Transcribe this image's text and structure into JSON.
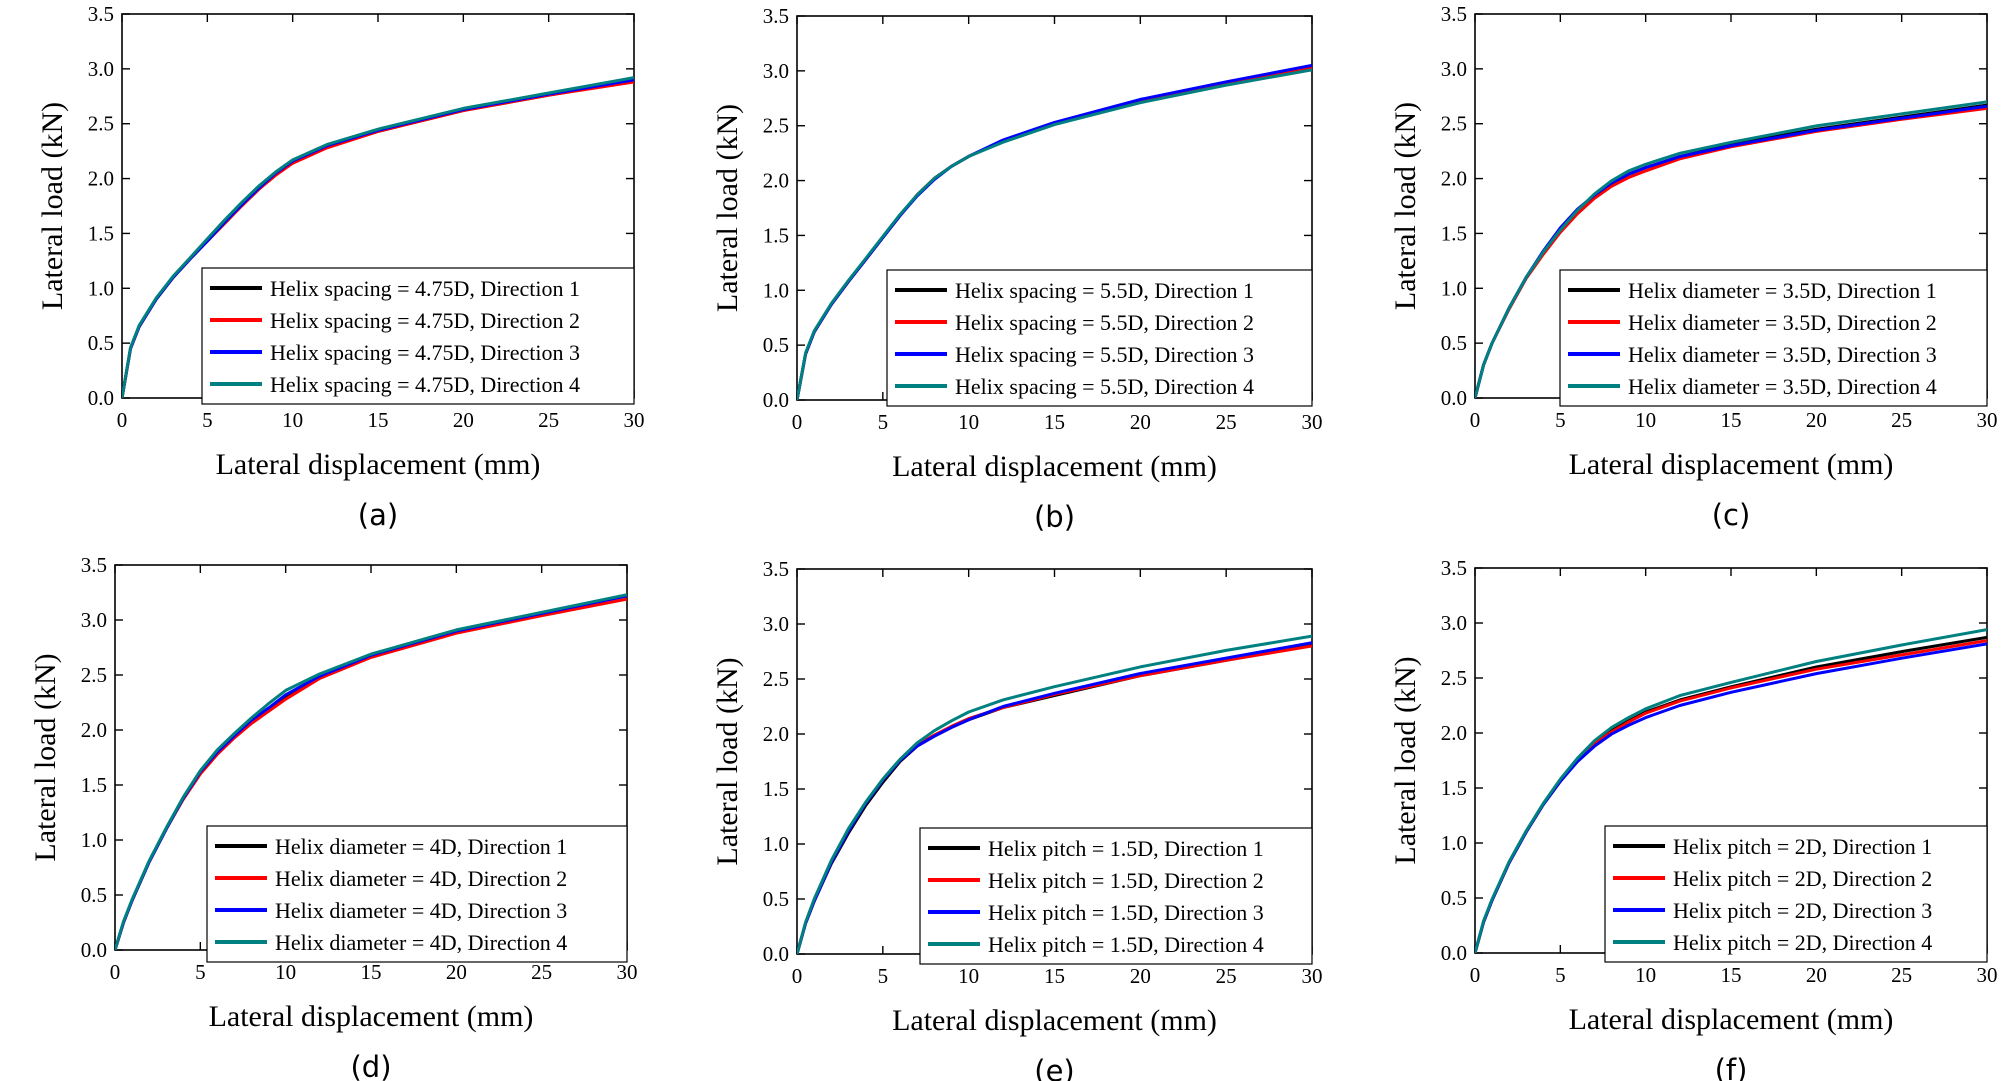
{
  "series_colors": [
    "#000000",
    "#ff0000",
    "#0000ff",
    "#008080"
  ],
  "chart_data": [
    {
      "type": "line",
      "panel_label": "(a)",
      "xlabel": "Lateral displacement (mm)",
      "ylabel": "Lateral load (kN)",
      "xlim": [
        0,
        30
      ],
      "ylim": [
        0,
        3.5
      ],
      "x_ticks": [
        "0",
        "5",
        "10",
        "15",
        "20",
        "25",
        "30"
      ],
      "y_ticks": [
        "0.0",
        "0.5",
        "1.0",
        "1.5",
        "2.0",
        "2.5",
        "3.0",
        "3.5"
      ],
      "grid": false,
      "legend_position": "bottom-right",
      "x": [
        0,
        0.5,
        1,
        2,
        3,
        4,
        5,
        6,
        7,
        8,
        9,
        10,
        12,
        15,
        20,
        25,
        30
      ],
      "series": [
        {
          "name": "Helix spacing = 4.75D, Direction 1",
          "values": [
            0,
            0.45,
            0.65,
            0.9,
            1.1,
            1.27,
            1.43,
            1.59,
            1.75,
            1.9,
            2.04,
            2.15,
            2.29,
            2.43,
            2.62,
            2.76,
            2.89
          ]
        },
        {
          "name": "Helix spacing = 4.75D, Direction 2",
          "values": [
            0,
            0.45,
            0.65,
            0.9,
            1.1,
            1.27,
            1.43,
            1.59,
            1.75,
            1.9,
            2.03,
            2.14,
            2.28,
            2.43,
            2.62,
            2.76,
            2.88
          ]
        },
        {
          "name": "Helix spacing = 4.75D, Direction 3",
          "values": [
            0,
            0.45,
            0.65,
            0.9,
            1.1,
            1.27,
            1.43,
            1.6,
            1.76,
            1.91,
            2.05,
            2.16,
            2.3,
            2.44,
            2.63,
            2.77,
            2.9
          ]
        },
        {
          "name": "Helix spacing = 4.75D, Direction 4",
          "values": [
            0,
            0.46,
            0.66,
            0.91,
            1.11,
            1.28,
            1.45,
            1.62,
            1.78,
            1.93,
            2.06,
            2.17,
            2.31,
            2.45,
            2.64,
            2.78,
            2.92
          ]
        }
      ]
    },
    {
      "type": "line",
      "panel_label": "(b)",
      "xlabel": "Lateral displacement (mm)",
      "ylabel": "Lateral load (kN)",
      "xlim": [
        0,
        30
      ],
      "ylim": [
        0,
        3.5
      ],
      "x_ticks": [
        "0",
        "5",
        "10",
        "15",
        "20",
        "25",
        "30"
      ],
      "y_ticks": [
        "0.0",
        "0.5",
        "1.0",
        "1.5",
        "2.0",
        "2.5",
        "3.0",
        "3.5"
      ],
      "grid": false,
      "legend_position": "bottom-right",
      "x": [
        0,
        0.5,
        1,
        2,
        3,
        4,
        5,
        6,
        7,
        8,
        9,
        10,
        12,
        15,
        20,
        25,
        30
      ],
      "series": [
        {
          "name": "Helix spacing = 5.5D, Direction 1",
          "values": [
            0,
            0.42,
            0.62,
            0.87,
            1.08,
            1.28,
            1.48,
            1.68,
            1.87,
            2.02,
            2.13,
            2.22,
            2.36,
            2.52,
            2.73,
            2.89,
            3.04
          ]
        },
        {
          "name": "Helix spacing = 5.5D, Direction 2",
          "values": [
            0,
            0.42,
            0.62,
            0.87,
            1.08,
            1.28,
            1.48,
            1.68,
            1.87,
            2.02,
            2.13,
            2.22,
            2.36,
            2.52,
            2.73,
            2.89,
            3.03
          ]
        },
        {
          "name": "Helix spacing = 5.5D, Direction 3",
          "values": [
            0,
            0.42,
            0.62,
            0.87,
            1.08,
            1.28,
            1.48,
            1.68,
            1.86,
            2.01,
            2.13,
            2.22,
            2.37,
            2.53,
            2.74,
            2.9,
            3.05
          ]
        },
        {
          "name": "Helix spacing = 5.5D, Direction 4",
          "values": [
            0,
            0.43,
            0.63,
            0.88,
            1.09,
            1.29,
            1.49,
            1.69,
            1.87,
            2.02,
            2.13,
            2.22,
            2.35,
            2.51,
            2.71,
            2.87,
            3.01
          ]
        }
      ]
    },
    {
      "type": "line",
      "panel_label": "(c)",
      "xlabel": "Lateral displacement (mm)",
      "ylabel": "Lateral load (kN)",
      "xlim": [
        0,
        30
      ],
      "ylim": [
        0,
        3.5
      ],
      "x_ticks": [
        "0",
        "5",
        "10",
        "15",
        "20",
        "25",
        "30"
      ],
      "y_ticks": [
        "0.0",
        "0.5",
        "1.0",
        "1.5",
        "2.0",
        "2.5",
        "3.0",
        "3.5"
      ],
      "grid": false,
      "legend_position": "bottom-right",
      "x": [
        0,
        0.5,
        1,
        2,
        3,
        4,
        5,
        6,
        7,
        8,
        9,
        10,
        12,
        15,
        20,
        25,
        30
      ],
      "series": [
        {
          "name": "Helix diameter = 3.5D, Direction 1",
          "values": [
            0,
            0.3,
            0.5,
            0.82,
            1.1,
            1.33,
            1.53,
            1.7,
            1.84,
            1.95,
            2.04,
            2.1,
            2.2,
            2.31,
            2.45,
            2.56,
            2.67
          ]
        },
        {
          "name": "Helix diameter = 3.5D, Direction 2",
          "values": [
            0,
            0.3,
            0.5,
            0.81,
            1.09,
            1.31,
            1.51,
            1.68,
            1.82,
            1.93,
            2.01,
            2.07,
            2.18,
            2.29,
            2.43,
            2.54,
            2.64
          ]
        },
        {
          "name": "Helix diameter = 3.5D, Direction 3",
          "values": [
            0,
            0.3,
            0.5,
            0.82,
            1.1,
            1.34,
            1.55,
            1.72,
            1.85,
            1.96,
            2.04,
            2.1,
            2.2,
            2.3,
            2.44,
            2.55,
            2.66
          ]
        },
        {
          "name": "Helix diameter = 3.5D, Direction 4",
          "values": [
            0,
            0.3,
            0.5,
            0.82,
            1.1,
            1.33,
            1.53,
            1.71,
            1.86,
            1.98,
            2.07,
            2.13,
            2.23,
            2.33,
            2.48,
            2.59,
            2.7
          ]
        }
      ]
    },
    {
      "type": "line",
      "panel_label": "(d)",
      "xlabel": "Lateral displacement (mm)",
      "ylabel": "Lateral load (kN)",
      "xlim": [
        0,
        30
      ],
      "ylim": [
        0,
        3.5
      ],
      "x_ticks": [
        "0",
        "5",
        "10",
        "15",
        "20",
        "25",
        "30"
      ],
      "y_ticks": [
        "0.0",
        "0.5",
        "1.0",
        "1.5",
        "2.0",
        "2.5",
        "3.0",
        "3.5"
      ],
      "grid": false,
      "legend_position": "bottom-right",
      "x": [
        0,
        0.5,
        1,
        2,
        3,
        4,
        5,
        6,
        7,
        8,
        9,
        10,
        12,
        15,
        20,
        25,
        30
      ],
      "series": [
        {
          "name": "Helix diameter = 4D, Direction 1",
          "values": [
            0,
            0.25,
            0.45,
            0.8,
            1.1,
            1.38,
            1.62,
            1.8,
            1.95,
            2.08,
            2.19,
            2.3,
            2.48,
            2.67,
            2.9,
            3.06,
            3.22
          ]
        },
        {
          "name": "Helix diameter = 4D, Direction 2",
          "values": [
            0,
            0.25,
            0.45,
            0.8,
            1.1,
            1.37,
            1.6,
            1.78,
            1.93,
            2.06,
            2.17,
            2.28,
            2.47,
            2.66,
            2.88,
            3.04,
            3.19
          ]
        },
        {
          "name": "Helix diameter = 4D, Direction 3",
          "values": [
            0,
            0.25,
            0.45,
            0.8,
            1.1,
            1.38,
            1.62,
            1.8,
            1.95,
            2.09,
            2.2,
            2.32,
            2.49,
            2.68,
            2.9,
            3.06,
            3.22
          ]
        },
        {
          "name": "Helix diameter = 4D, Direction 4",
          "values": [
            0,
            0.26,
            0.46,
            0.81,
            1.11,
            1.39,
            1.63,
            1.82,
            1.97,
            2.11,
            2.24,
            2.36,
            2.51,
            2.69,
            2.91,
            3.07,
            3.23
          ]
        }
      ]
    },
    {
      "type": "line",
      "panel_label": "(e)",
      "xlabel": "Lateral displacement (mm)",
      "ylabel": "Lateral load (kN)",
      "xlim": [
        0,
        30
      ],
      "ylim": [
        0,
        3.5
      ],
      "x_ticks": [
        "0",
        "5",
        "10",
        "15",
        "20",
        "25",
        "30"
      ],
      "y_ticks": [
        "0.0",
        "0.5",
        "1.0",
        "1.5",
        "2.0",
        "2.5",
        "3.0",
        "3.5"
      ],
      "grid": false,
      "legend_position": "bottom-right",
      "x": [
        0,
        0.5,
        1,
        2,
        3,
        4,
        5,
        6,
        7,
        8,
        9,
        10,
        12,
        15,
        20,
        25,
        30
      ],
      "series": [
        {
          "name": "Helix pitch = 1.5D, Direction 1",
          "values": [
            0,
            0.28,
            0.48,
            0.82,
            1.1,
            1.35,
            1.56,
            1.75,
            1.89,
            1.98,
            2.06,
            2.13,
            2.24,
            2.35,
            2.53,
            2.67,
            2.81
          ]
        },
        {
          "name": "Helix pitch = 1.5D, Direction 2",
          "values": [
            0,
            0.28,
            0.48,
            0.83,
            1.12,
            1.37,
            1.58,
            1.76,
            1.9,
            1.99,
            2.07,
            2.14,
            2.24,
            2.36,
            2.53,
            2.67,
            2.8
          ]
        },
        {
          "name": "Helix pitch = 1.5D, Direction 3",
          "values": [
            0,
            0.28,
            0.48,
            0.83,
            1.12,
            1.37,
            1.58,
            1.76,
            1.89,
            1.98,
            2.06,
            2.13,
            2.25,
            2.37,
            2.55,
            2.69,
            2.83
          ]
        },
        {
          "name": "Helix pitch = 1.5D, Direction 4",
          "values": [
            0,
            0.29,
            0.5,
            0.85,
            1.14,
            1.38,
            1.59,
            1.77,
            1.92,
            2.03,
            2.12,
            2.2,
            2.31,
            2.43,
            2.61,
            2.76,
            2.89
          ]
        }
      ]
    },
    {
      "type": "line",
      "panel_label": "(f)",
      "xlabel": "Lateral displacement (mm)",
      "ylabel": "Lateral load (kN)",
      "xlim": [
        0,
        30
      ],
      "ylim": [
        0,
        3.5
      ],
      "x_ticks": [
        "0",
        "5",
        "10",
        "15",
        "20",
        "25",
        "30"
      ],
      "y_ticks": [
        "0.0",
        "0.5",
        "1.0",
        "1.5",
        "2.0",
        "2.5",
        "3.0",
        "3.5"
      ],
      "grid": false,
      "legend_position": "bottom-right",
      "x": [
        0,
        0.5,
        1,
        2,
        3,
        4,
        5,
        6,
        7,
        8,
        9,
        10,
        12,
        15,
        20,
        25,
        30
      ],
      "series": [
        {
          "name": "Helix pitch = 2D, Direction 1",
          "values": [
            0,
            0.28,
            0.48,
            0.82,
            1.1,
            1.35,
            1.56,
            1.75,
            1.9,
            2.02,
            2.11,
            2.19,
            2.3,
            2.42,
            2.6,
            2.74,
            2.87
          ]
        },
        {
          "name": "Helix pitch = 2D, Direction 2",
          "values": [
            0,
            0.28,
            0.48,
            0.82,
            1.1,
            1.35,
            1.56,
            1.75,
            1.9,
            2.01,
            2.1,
            2.18,
            2.29,
            2.41,
            2.58,
            2.71,
            2.84
          ]
        },
        {
          "name": "Helix pitch = 2D, Direction 3",
          "values": [
            0,
            0.28,
            0.48,
            0.82,
            1.1,
            1.35,
            1.56,
            1.74,
            1.88,
            1.99,
            2.07,
            2.14,
            2.25,
            2.37,
            2.54,
            2.68,
            2.81
          ]
        },
        {
          "name": "Helix pitch = 2D, Direction 4",
          "values": [
            0,
            0.29,
            0.49,
            0.83,
            1.11,
            1.36,
            1.58,
            1.77,
            1.93,
            2.05,
            2.14,
            2.22,
            2.34,
            2.46,
            2.65,
            2.8,
            2.94
          ]
        }
      ]
    }
  ]
}
